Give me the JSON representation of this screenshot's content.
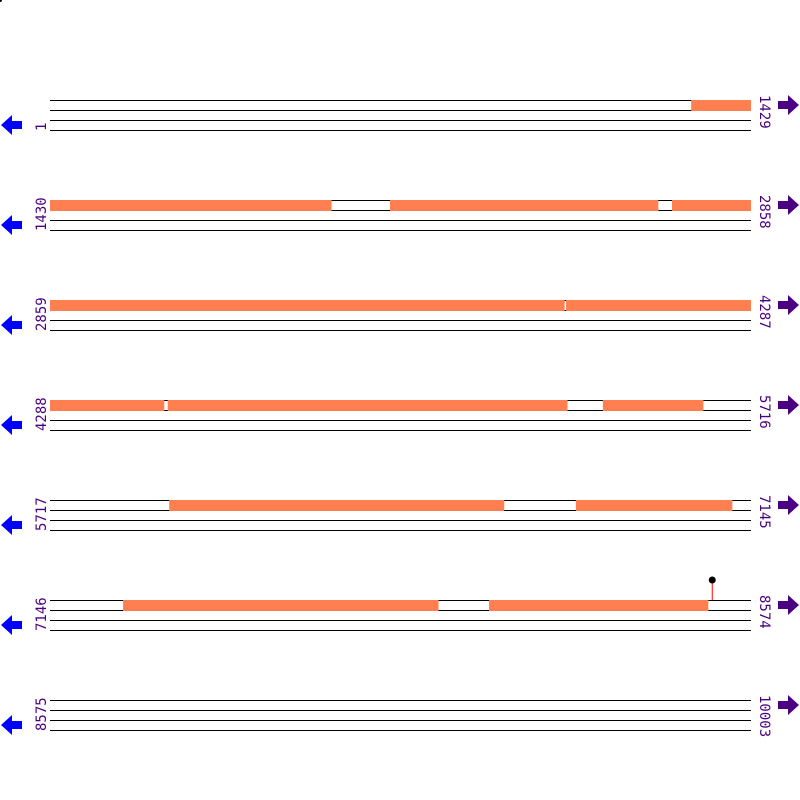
{
  "colors": {
    "feature": "#ff7f50",
    "track_line": "#000000",
    "label": "#4b0082",
    "left_arrow": "#0000ff",
    "right_arrow": "#4b0082",
    "marker_stem": "#ff0000",
    "marker_head": "#000000"
  },
  "rows": [
    {
      "start": "1",
      "end": "1429",
      "features": [
        [
          1308,
          1429
        ]
      ],
      "markers": []
    },
    {
      "start": "1430",
      "end": "2858",
      "features": [
        [
          1430,
          2003
        ],
        [
          2123,
          2669
        ],
        [
          2698,
          2858
        ]
      ],
      "markers": []
    },
    {
      "start": "2859",
      "end": "4287",
      "features": [
        [
          2859,
          3907
        ],
        [
          3911,
          4287
        ]
      ],
      "markers": []
    },
    {
      "start": "4288",
      "end": "5716",
      "features": [
        [
          4288,
          4520
        ],
        [
          4528,
          5342
        ],
        [
          5415,
          5619
        ]
      ],
      "markers": []
    },
    {
      "start": "5717",
      "end": "7145",
      "features": [
        [
          5960,
          6642
        ],
        [
          6789,
          7107
        ]
      ],
      "markers": []
    },
    {
      "start": "7146",
      "end": "8574",
      "features": [
        [
          7295,
          7937
        ],
        [
          8041,
          8487
        ]
      ],
      "markers": [
        8496
      ]
    },
    {
      "start": "8575",
      "end": "10003",
      "features": [],
      "markers": []
    }
  ],
  "icons": {
    "left": "arrow-left-icon",
    "right": "arrow-right-icon"
  }
}
